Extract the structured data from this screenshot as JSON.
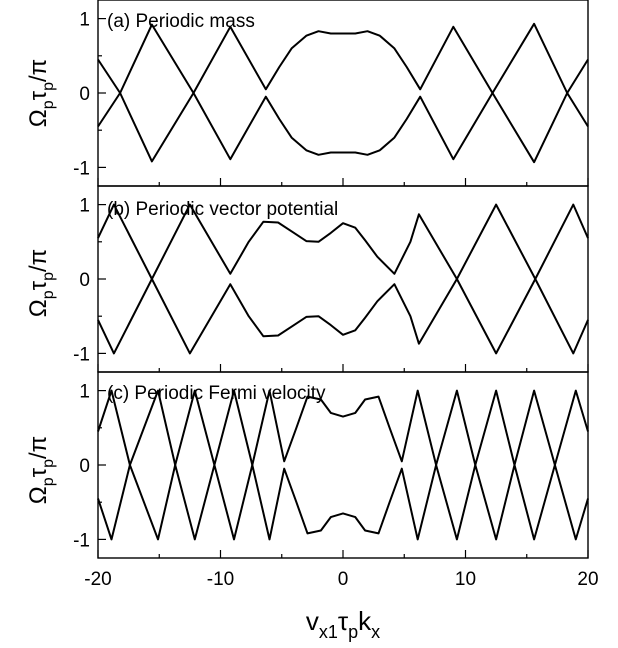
{
  "chart_data": [
    {
      "type": "line",
      "panel": "a",
      "title": "(a) Periodic mass",
      "xlabel": "",
      "ylabel": "Ω_p τ_p / π",
      "xlim": [
        -20,
        20
      ],
      "ylim": [
        -1.25,
        1.25
      ],
      "xticks": [
        -20,
        -10,
        0,
        10,
        20
      ],
      "yticks": [
        -1,
        0,
        1
      ],
      "ytick_labels": [
        "-1",
        "0",
        "1"
      ],
      "series": [
        {
          "band": "upper",
          "x": [
            -20.0,
            -18.2,
            -15.6,
            -12.2,
            -9.2,
            -6.3,
            -5.2,
            -4.2,
            -3.0,
            -2.0,
            -1.0,
            0.0,
            1.0,
            2.0,
            3.0,
            4.2,
            5.2,
            6.3,
            9.0,
            12.2,
            15.6,
            18.3,
            20.0
          ],
          "y": [
            0.45,
            0.0,
            0.92,
            0.0,
            0.89,
            0.05,
            0.35,
            0.6,
            0.77,
            0.83,
            0.8,
            0.8,
            0.8,
            0.83,
            0.77,
            0.6,
            0.35,
            0.05,
            0.89,
            0.0,
            0.93,
            0.0,
            0.45
          ]
        },
        {
          "band": "lower",
          "x": [
            -20.0,
            -18.2,
            -15.6,
            -12.2,
            -9.2,
            -6.3,
            -5.2,
            -4.2,
            -3.0,
            -2.0,
            -1.0,
            0.0,
            1.0,
            2.0,
            3.0,
            4.2,
            5.2,
            6.3,
            9.0,
            12.2,
            15.6,
            18.3,
            20.0
          ],
          "y": [
            -0.45,
            0.0,
            -0.92,
            0.0,
            -0.89,
            -0.05,
            -0.35,
            -0.6,
            -0.77,
            -0.83,
            -0.8,
            -0.8,
            -0.8,
            -0.83,
            -0.77,
            -0.6,
            -0.35,
            -0.05,
            -0.89,
            0.0,
            -0.93,
            0.0,
            -0.45
          ]
        }
      ]
    },
    {
      "type": "line",
      "panel": "b",
      "title": "(b) Periodic vector potential",
      "xlabel": "",
      "ylabel": "Ω_p τ_p / π",
      "xlim": [
        -20,
        20
      ],
      "ylim": [
        -1.25,
        1.25
      ],
      "xticks": [
        -20,
        -10,
        0,
        10,
        20
      ],
      "yticks": [
        -1,
        0,
        1
      ],
      "ytick_labels": [
        "-1",
        "0",
        "1"
      ],
      "series": [
        {
          "band": "upper",
          "x": [
            -20.0,
            -18.7,
            -15.6,
            -12.5,
            -9.2,
            -7.7,
            -6.5,
            -5.3,
            -4.0,
            -3.0,
            -2.0,
            -1.0,
            0.0,
            1.0,
            1.8,
            2.8,
            4.2,
            5.5,
            6.2,
            9.3,
            12.5,
            15.7,
            18.8,
            20.0
          ],
          "y": [
            0.55,
            1.0,
            0.0,
            1.0,
            0.07,
            0.5,
            0.77,
            0.76,
            0.62,
            0.51,
            0.5,
            0.62,
            0.75,
            0.69,
            0.52,
            0.3,
            0.07,
            0.5,
            0.87,
            0.0,
            1.0,
            0.0,
            1.0,
            0.55
          ]
        },
        {
          "band": "lower",
          "x": [
            -20.0,
            -18.7,
            -15.6,
            -12.5,
            -9.2,
            -7.7,
            -6.5,
            -5.3,
            -4.0,
            -3.0,
            -2.0,
            -1.0,
            0.0,
            1.0,
            1.8,
            2.8,
            4.2,
            5.5,
            6.2,
            9.3,
            12.5,
            15.7,
            18.8,
            20.0
          ],
          "y": [
            -0.55,
            -1.0,
            0.0,
            -1.0,
            -0.07,
            -0.5,
            -0.77,
            -0.76,
            -0.62,
            -0.51,
            -0.5,
            -0.62,
            -0.75,
            -0.69,
            -0.52,
            -0.3,
            -0.07,
            -0.5,
            -0.87,
            0.0,
            -1.0,
            0.0,
            -1.0,
            -0.55
          ]
        }
      ]
    },
    {
      "type": "line",
      "panel": "c",
      "title": "(c) Periodic Fermi velocity",
      "xlabel": "v_x1 τ_p k_x",
      "ylabel": "Ω_p τ_p / π",
      "xlim": [
        -20,
        20
      ],
      "ylim": [
        -1.25,
        1.25
      ],
      "xticks": [
        -20,
        -10,
        0,
        10,
        20
      ],
      "xtick_labels": [
        "-20",
        "-10",
        "0",
        "10",
        "20"
      ],
      "yticks": [
        -1,
        0,
        1
      ],
      "ytick_labels": [
        "-1",
        "0",
        "1"
      ],
      "series": [
        {
          "band": "upper",
          "x": [
            -20.0,
            -18.9,
            -17.4,
            -15.1,
            -13.7,
            -12.1,
            -10.5,
            -8.9,
            -7.4,
            -6.0,
            -4.8,
            -3.8,
            -2.9,
            -1.8,
            -1.0,
            0.0,
            1.0,
            1.8,
            2.9,
            3.8,
            4.8,
            6.1,
            7.6,
            9.3,
            10.8,
            12.5,
            14.0,
            15.6,
            17.3,
            19.0,
            20.0
          ],
          "y": [
            0.45,
            1.0,
            0.0,
            1.0,
            0.0,
            1.0,
            0.0,
            1.0,
            0.0,
            1.0,
            0.05,
            0.5,
            0.92,
            0.88,
            0.7,
            0.65,
            0.7,
            0.88,
            0.92,
            0.5,
            0.05,
            1.0,
            0.0,
            1.0,
            0.0,
            1.0,
            0.0,
            1.0,
            0.0,
            1.0,
            0.45
          ]
        },
        {
          "band": "lower",
          "x": [
            -20.0,
            -18.9,
            -17.4,
            -15.1,
            -13.7,
            -12.1,
            -10.5,
            -8.9,
            -7.4,
            -6.0,
            -4.8,
            -3.8,
            -2.9,
            -1.8,
            -1.0,
            0.0,
            1.0,
            1.8,
            2.9,
            3.8,
            4.8,
            6.1,
            7.6,
            9.3,
            10.8,
            12.5,
            14.0,
            15.6,
            17.3,
            19.0,
            20.0
          ],
          "y": [
            -0.45,
            -1.0,
            0.0,
            -1.0,
            0.0,
            -1.0,
            0.0,
            -1.0,
            0.0,
            -1.0,
            -0.05,
            -0.5,
            -0.92,
            -0.88,
            -0.7,
            -0.65,
            -0.7,
            -0.88,
            -0.92,
            -0.5,
            -0.05,
            -1.0,
            0.0,
            -1.0,
            0.0,
            -1.0,
            0.0,
            -1.0,
            0.0,
            -1.0,
            -0.45
          ]
        }
      ]
    }
  ]
}
